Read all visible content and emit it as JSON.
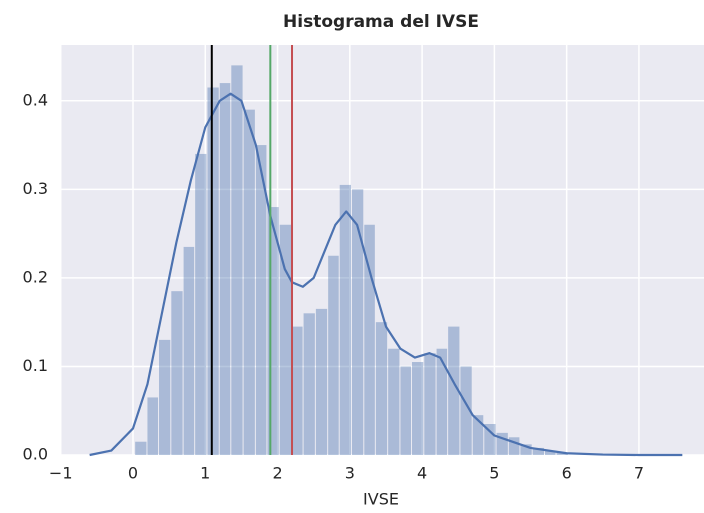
{
  "chart_data": {
    "type": "histogram",
    "title": "Histograma del IVSE",
    "xlabel": "IVSE",
    "bins": [
      0.03,
      0.2,
      0.36,
      0.53,
      0.7,
      0.86,
      1.03,
      1.2,
      1.36,
      1.53,
      1.7,
      1.86,
      2.03,
      2.2,
      2.36,
      2.53,
      2.7,
      2.86,
      3.03,
      3.2,
      3.36,
      3.53,
      3.7,
      3.86,
      4.03,
      4.2,
      4.36,
      4.53,
      4.7,
      4.86,
      5.03,
      5.2,
      5.36,
      5.53,
      5.7,
      5.86,
      6.03
    ],
    "values": [
      0.015,
      0.065,
      0.13,
      0.185,
      0.235,
      0.34,
      0.415,
      0.42,
      0.44,
      0.39,
      0.35,
      0.28,
      0.26,
      0.145,
      0.16,
      0.165,
      0.225,
      0.305,
      0.3,
      0.26,
      0.15,
      0.12,
      0.1,
      0.105,
      0.115,
      0.12,
      0.145,
      0.1,
      0.045,
      0.035,
      0.025,
      0.02,
      0.012,
      0.008,
      0.005,
      0.003
    ],
    "color": "#4c72b0",
    "kde": {
      "x": [
        -0.6,
        -0.3,
        0,
        0.2,
        0.4,
        0.6,
        0.8,
        1.0,
        1.2,
        1.35,
        1.5,
        1.7,
        1.9,
        2.1,
        2.2,
        2.35,
        2.5,
        2.65,
        2.8,
        2.95,
        3.1,
        3.3,
        3.5,
        3.7,
        3.9,
        4.1,
        4.25,
        4.45,
        4.7,
        5.0,
        5.5,
        6.0,
        6.5,
        7.0,
        7.6
      ],
      "y": [
        0,
        0.005,
        0.03,
        0.08,
        0.16,
        0.24,
        0.31,
        0.37,
        0.4,
        0.408,
        0.4,
        0.35,
        0.27,
        0.21,
        0.195,
        0.19,
        0.2,
        0.23,
        0.26,
        0.275,
        0.26,
        0.2,
        0.145,
        0.12,
        0.11,
        0.115,
        0.11,
        0.08,
        0.045,
        0.022,
        0.008,
        0.002,
        0.0005,
        0,
        0
      ],
      "color": "#4c72b0"
    },
    "vlines": [
      {
        "x": 1.09,
        "color": "#000000"
      },
      {
        "x": 1.9,
        "color": "#55a868"
      },
      {
        "x": 2.2,
        "color": "#c44e52"
      }
    ],
    "xlim": [
      -1.01,
      7.9
    ],
    "ylim": [
      0,
      0.463
    ],
    "xticks": [
      {
        "value": -1,
        "label": "−1"
      },
      0,
      1,
      2,
      3,
      4,
      5,
      6,
      7
    ],
    "yticks": [
      {
        "value": 0,
        "label": "0.0"
      },
      {
        "value": 0.1,
        "label": "0.1"
      },
      {
        "value": 0.2,
        "label": "0.2"
      },
      {
        "value": 0.3,
        "label": "0.3"
      },
      {
        "value": 0.4,
        "label": "0.4"
      }
    ],
    "grid": true,
    "background": "#eaeaf2"
  }
}
